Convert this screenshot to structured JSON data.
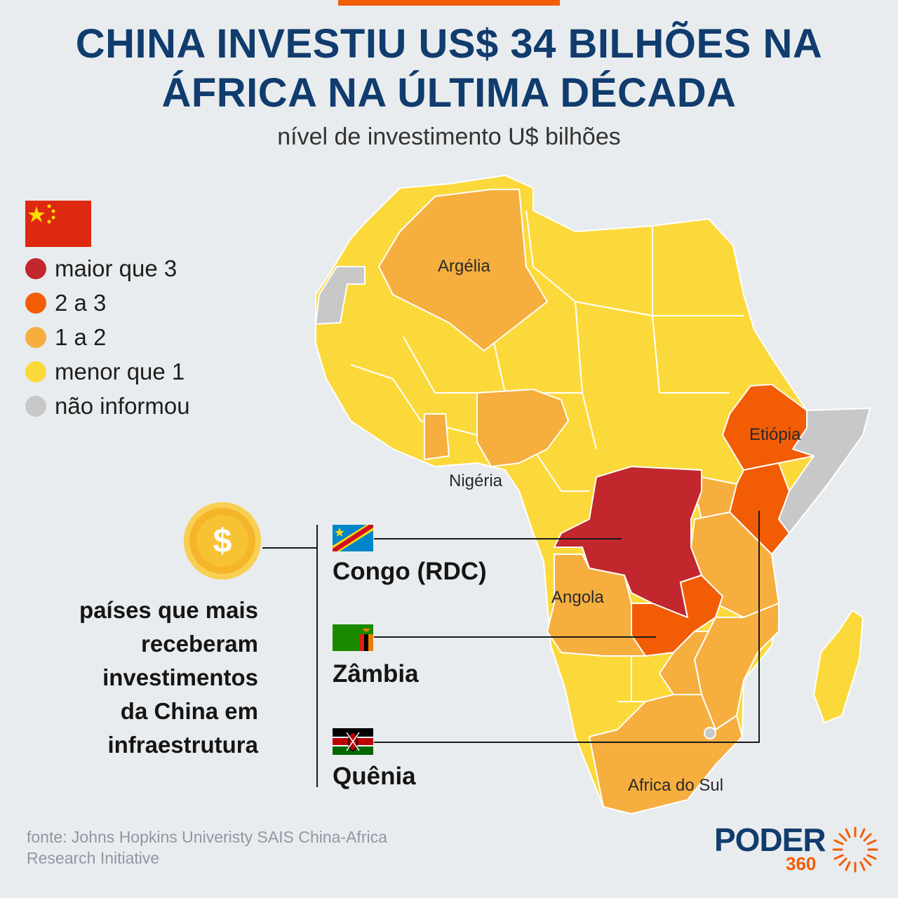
{
  "header": {
    "title_line1": "CHINA INVESTIU US$ 34 BILHÕES NA",
    "title_line2": "ÁFRICA NA ÚLTIMA DÉCADA",
    "subtitle": "nível de investimento U$ bilhões"
  },
  "legend": {
    "flag_icon": "china-flag-icon",
    "items": [
      {
        "label": "maior que 3",
        "color": "#c1272d"
      },
      {
        "label": "2 a 3",
        "color": "#f25c05"
      },
      {
        "label": "1 a 2",
        "color": "#f6ae3f"
      },
      {
        "label": "menor que 1",
        "color": "#fbd93b"
      },
      {
        "label": "não informou",
        "color": "#c8c8c8"
      }
    ]
  },
  "map_labels": {
    "algeria": "Argélia",
    "ethiopia": "Etiópia",
    "nigeria": "Nigéria",
    "angola": "Angola",
    "south_africa": "Africa do Sul"
  },
  "highlight": {
    "coin_symbol": "$",
    "description": [
      "países que mais",
      "receberam",
      "investimentos",
      "da China em",
      "infraestrutura"
    ],
    "countries": [
      "Congo (RDC)",
      "Zâmbia",
      "Quênia"
    ]
  },
  "source": {
    "line1": "fonte: Johns Hopkins Univeristy SAIS China-Africa",
    "line2": "Research Initiative"
  },
  "logo": {
    "main": "PODER",
    "number": "360"
  }
}
